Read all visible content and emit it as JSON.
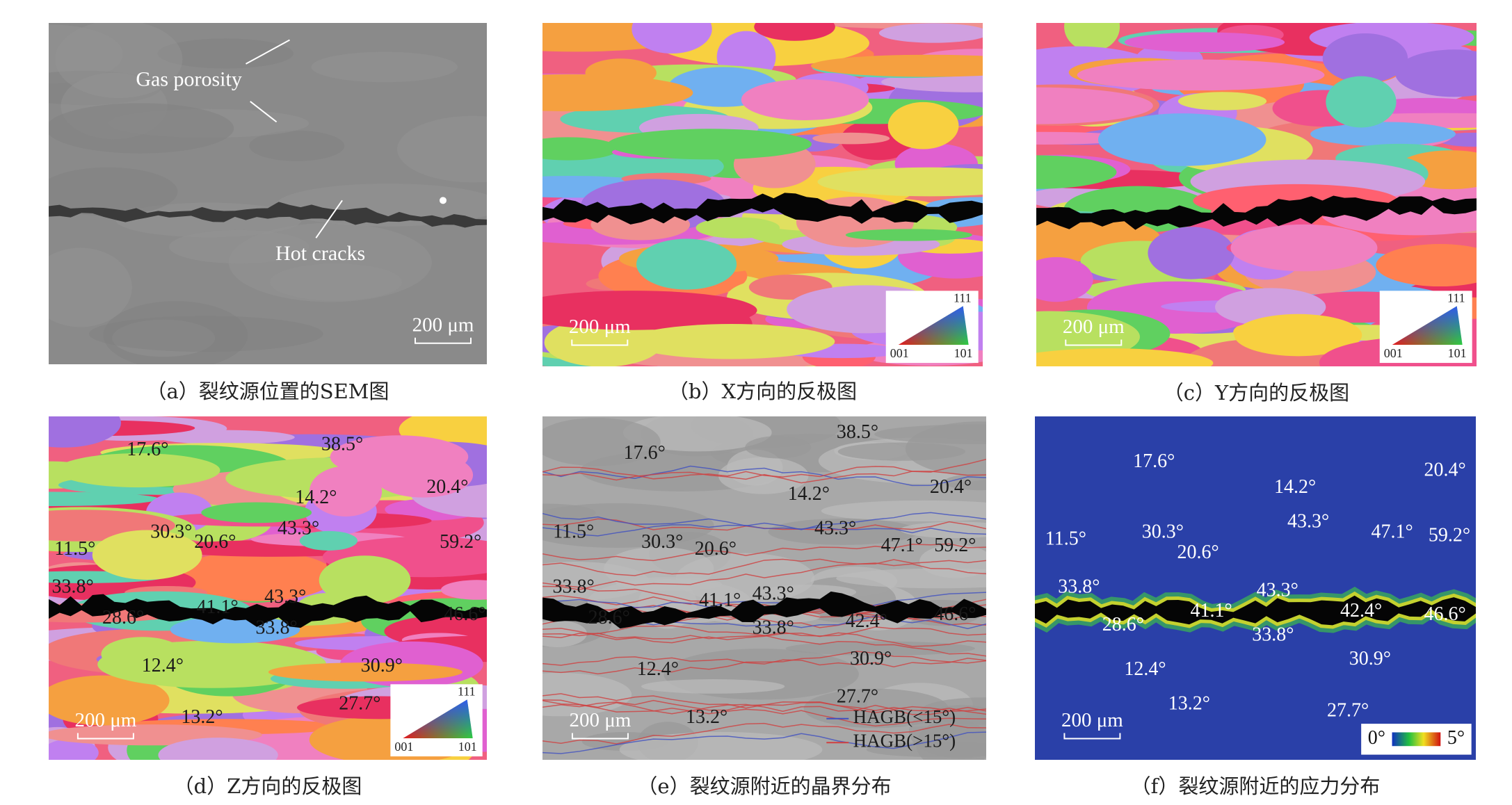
{
  "panels": [
    {
      "caption": "（a）裂纹源位置的SEM图",
      "scale_bar": "200 μm",
      "labels": [
        "Gas porosity",
        "Hot cracks"
      ]
    },
    {
      "caption": "（b）X方向的反极图",
      "scale_bar": "200 μm",
      "ipf_key": [
        "111",
        "001",
        "101"
      ]
    },
    {
      "caption": "（c）Y方向的反极图",
      "scale_bar": "200 μm",
      "ipf_key": [
        "111",
        "001",
        "101"
      ]
    },
    {
      "caption": "（d）Z方向的反极图",
      "scale_bar": "200 μm",
      "ipf_key": [
        "111",
        "001",
        "101"
      ],
      "angles": [
        "17.6°",
        "38.5°",
        "20.4°",
        "14.2°",
        "43.3°",
        "30.3°",
        "20.6°",
        "11.5°",
        "59.2°",
        "33.8°",
        "43.3°",
        "41.1°",
        "28.6°",
        "33.8°",
        "46.6°",
        "12.4°",
        "30.9°",
        "27.7°",
        "13.2°"
      ]
    },
    {
      "caption": "（e）裂纹源附近的晶界分布",
      "scale_bar": "200 μm",
      "angles": [
        "38.5°",
        "17.6°",
        "20.4°",
        "14.2°",
        "11.5°",
        "30.3°",
        "43.3°",
        "20.6°",
        "47.1°",
        "59.2°",
        "33.8°",
        "43.3°",
        "41.1°",
        "28.6°",
        "42.4°",
        "46.6°",
        "33.8°",
        "12.4°",
        "30.9°",
        "27.7°",
        "13.2°"
      ],
      "legend": [
        "HAGB(<15°)",
        "HAGB(>15°)"
      ]
    },
    {
      "caption": "（f）裂纹源附近的应力分布",
      "scale_bar": "200 μm",
      "angles": [
        "17.6°",
        "20.4°",
        "14.2°",
        "43.3°",
        "30.3°",
        "47.1°",
        "59.2°",
        "11.5°",
        "20.6°",
        "33.8°",
        "43.3°",
        "41.1°",
        "42.4°",
        "46.6°",
        "28.6°",
        "33.8°",
        "12.4°",
        "30.9°",
        "13.2°",
        "27.7°"
      ],
      "colorbar": [
        "0°",
        "5°"
      ]
    }
  ]
}
